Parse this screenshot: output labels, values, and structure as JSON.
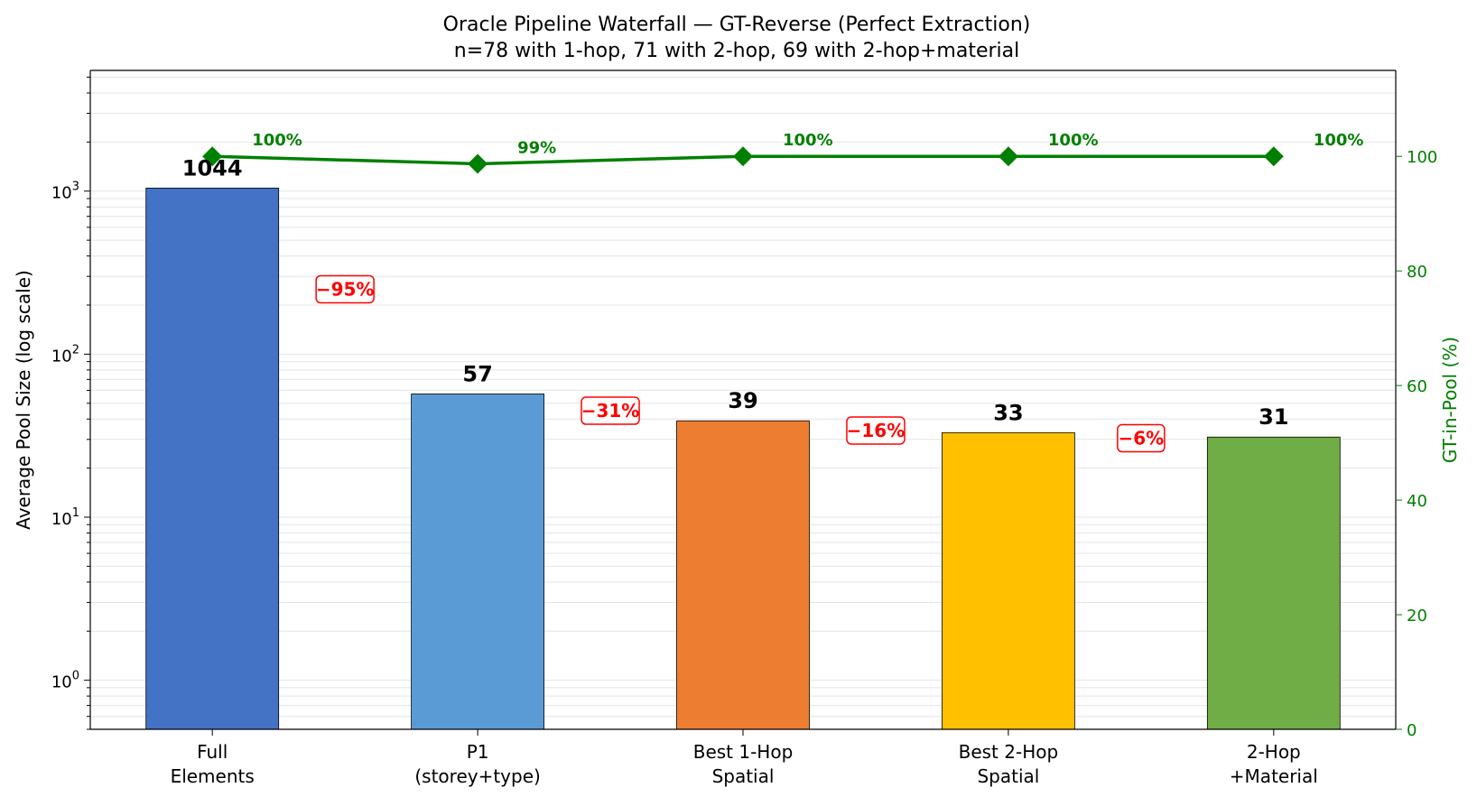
{
  "chart_data": {
    "type": "bar",
    "title": "Oracle Pipeline Waterfall — GT-Reverse (Perfect Extraction)",
    "subtitle": "n=78 with 1-hop, 71 with 2-hop, 69 with 2-hop+material",
    "ylabel": "Average Pool Size (log scale)",
    "y2label": "GT-in-Pool (%)",
    "yscale": "log",
    "ylim": [
      0.5,
      5500
    ],
    "y2lim": [
      0,
      115
    ],
    "y_ticks": [
      {
        "value": 1,
        "base": "10",
        "exp": "0"
      },
      {
        "value": 10,
        "base": "10",
        "exp": "1"
      },
      {
        "value": 100,
        "base": "10",
        "exp": "2"
      },
      {
        "value": 1000,
        "base": "10",
        "exp": "3"
      }
    ],
    "y2_ticks": [
      "0",
      "20",
      "40",
      "60",
      "80",
      "100"
    ],
    "grid": true,
    "categories": [
      [
        "Full",
        "Elements"
      ],
      [
        "P1",
        "(storey+type)"
      ],
      [
        "Best 1-Hop",
        "Spatial"
      ],
      [
        "Best 2-Hop",
        "Spatial"
      ],
      [
        "2-Hop",
        "+Material"
      ]
    ],
    "values": [
      1044,
      57,
      39,
      33,
      31
    ],
    "value_labels": [
      "1044",
      "57",
      "39",
      "33",
      "31"
    ],
    "bar_colors": [
      "#4472c4",
      "#5b9bd5",
      "#ed7d31",
      "#ffc000",
      "#70ad47"
    ],
    "gt_in_pool": [
      100,
      98.7,
      100,
      100,
      100
    ],
    "gt_labels": [
      "100%",
      "99%",
      "100%",
      "100%",
      "100%"
    ],
    "reductions": [
      "−95%",
      "−31%",
      "−16%",
      "−6%"
    ],
    "reduction_y": [
      250,
      45,
      34,
      30.5
    ],
    "line_color": "#008000",
    "reduction_color": "#ff0000"
  }
}
